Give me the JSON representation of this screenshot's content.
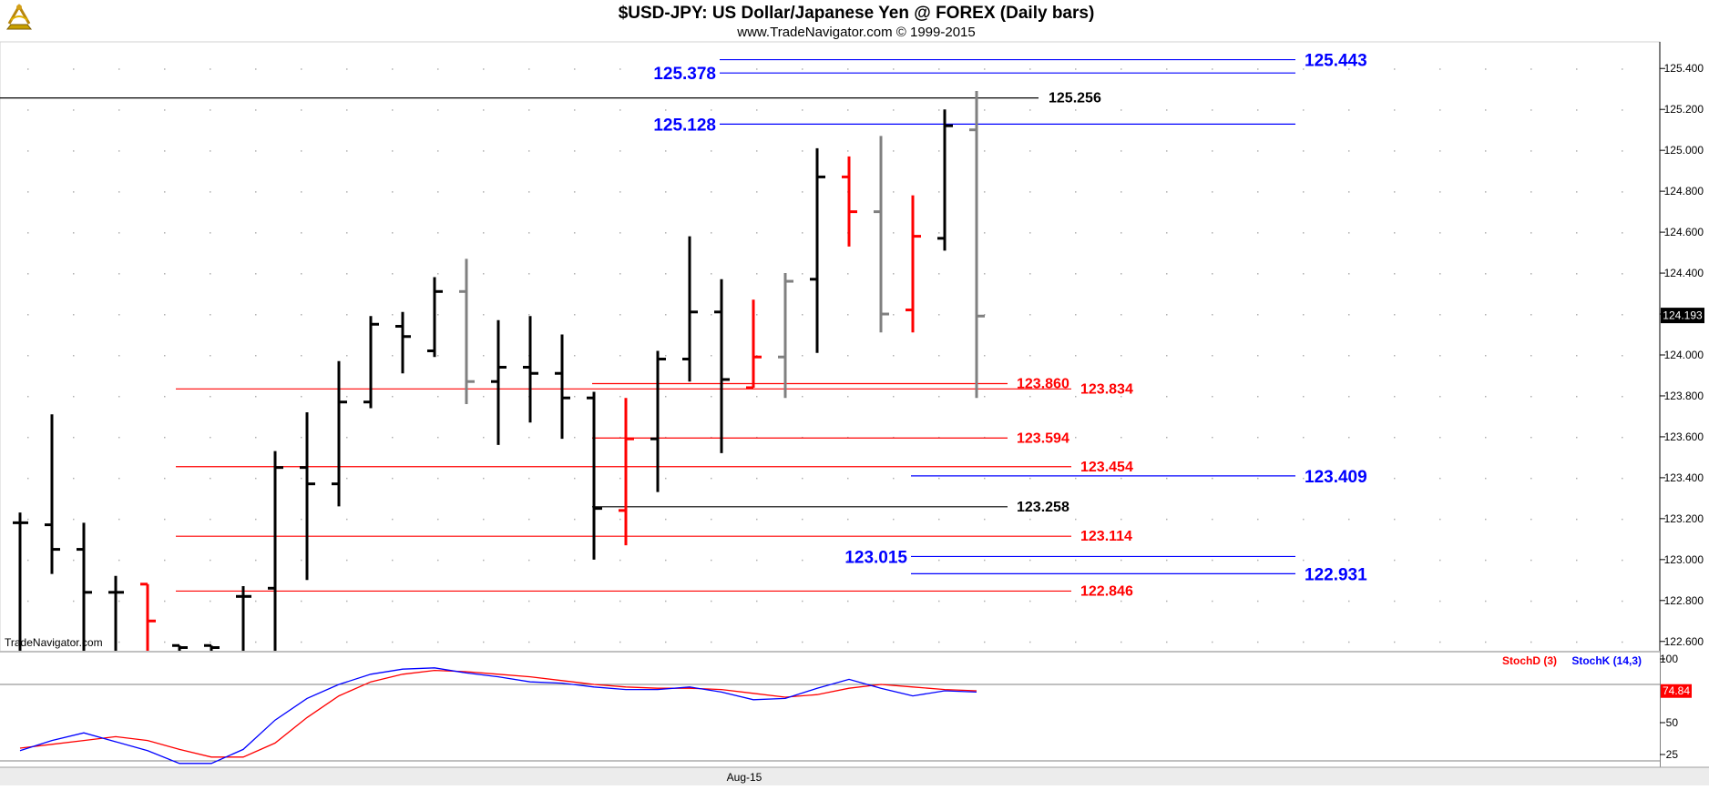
{
  "header": {
    "title": "$USD-JPY:  US Dollar/Japanese Yen @ FOREX  (Daily bars)",
    "subtitle": "www.TradeNavigator.com © 1999-2015",
    "logo_icon": "sextant-logo-icon"
  },
  "watermark": "TradeNavigator.com",
  "colors": {
    "up_bar": "#000000",
    "down_bar": "#ff0000",
    "neutral_bar": "#808080",
    "level_red": "#ff0000",
    "level_blue": "#0000ff",
    "level_black": "#000000",
    "stoch_d": "#ff0000",
    "stoch_k": "#0000ff",
    "grid_dot": "#b0b0b0"
  },
  "chart_data": {
    "type": "ohlc",
    "ylim": [
      122.55,
      125.53
    ],
    "y_ticks": [
      "122.600",
      "122.800",
      "123.000",
      "123.200",
      "123.400",
      "123.600",
      "123.800",
      "124.000",
      "124.200",
      "124.400",
      "124.600",
      "124.800",
      "125.000",
      "125.200",
      "125.400"
    ],
    "x_label": "Aug-15",
    "x_label_index": 23,
    "last_price": "124.193",
    "bars": [
      {
        "o": 123.18,
        "h": 123.23,
        "l": 122.55,
        "c": 123.18,
        "color": "up"
      },
      {
        "o": 123.17,
        "h": 123.71,
        "l": 122.93,
        "c": 123.05,
        "color": "up"
      },
      {
        "o": 123.05,
        "h": 123.18,
        "l": 122.55,
        "c": 122.84,
        "color": "up"
      },
      {
        "o": 122.84,
        "h": 122.92,
        "l": 122.55,
        "c": 122.84,
        "color": "up"
      },
      {
        "o": 122.88,
        "h": 122.88,
        "l": 122.55,
        "c": 122.7,
        "color": "down"
      },
      {
        "o": 122.58,
        "h": 122.58,
        "l": 122.55,
        "c": 122.57,
        "color": "up"
      },
      {
        "o": 122.58,
        "h": 122.58,
        "l": 122.55,
        "c": 122.57,
        "color": "up"
      },
      {
        "o": 122.82,
        "h": 122.87,
        "l": 122.55,
        "c": 122.82,
        "color": "up"
      },
      {
        "o": 122.86,
        "h": 123.53,
        "l": 122.55,
        "c": 123.45,
        "color": "up"
      },
      {
        "o": 123.45,
        "h": 123.72,
        "l": 122.9,
        "c": 123.37,
        "color": "up"
      },
      {
        "o": 123.37,
        "h": 123.97,
        "l": 123.26,
        "c": 123.77,
        "color": "up"
      },
      {
        "o": 123.77,
        "h": 124.19,
        "l": 123.74,
        "c": 124.15,
        "color": "up"
      },
      {
        "o": 124.14,
        "h": 124.21,
        "l": 123.91,
        "c": 124.09,
        "color": "up"
      },
      {
        "o": 124.02,
        "h": 124.38,
        "l": 123.99,
        "c": 124.31,
        "color": "up"
      },
      {
        "o": 124.31,
        "h": 124.47,
        "l": 123.76,
        "c": 123.87,
        "color": "neutral"
      },
      {
        "o": 123.87,
        "h": 124.17,
        "l": 123.56,
        "c": 123.94,
        "color": "up"
      },
      {
        "o": 123.94,
        "h": 124.19,
        "l": 123.67,
        "c": 123.91,
        "color": "up"
      },
      {
        "o": 123.91,
        "h": 124.1,
        "l": 123.59,
        "c": 123.79,
        "color": "up"
      },
      {
        "o": 123.79,
        "h": 123.82,
        "l": 123.0,
        "c": 123.25,
        "color": "up"
      },
      {
        "o": 123.24,
        "h": 123.79,
        "l": 123.07,
        "c": 123.59,
        "color": "down"
      },
      {
        "o": 123.59,
        "h": 124.02,
        "l": 123.33,
        "c": 123.98,
        "color": "up"
      },
      {
        "o": 123.98,
        "h": 124.58,
        "l": 123.87,
        "c": 124.21,
        "color": "up"
      },
      {
        "o": 124.21,
        "h": 124.37,
        "l": 123.52,
        "c": 123.88,
        "color": "up"
      },
      {
        "o": 123.84,
        "h": 124.27,
        "l": 123.84,
        "c": 123.99,
        "color": "down"
      },
      {
        "o": 123.99,
        "h": 124.4,
        "l": 123.79,
        "c": 124.36,
        "color": "neutral"
      },
      {
        "o": 124.37,
        "h": 125.01,
        "l": 124.01,
        "c": 124.87,
        "color": "up"
      },
      {
        "o": 124.87,
        "h": 124.97,
        "l": 124.53,
        "c": 124.7,
        "color": "down"
      },
      {
        "o": 124.7,
        "h": 125.07,
        "l": 124.11,
        "c": 124.2,
        "color": "neutral"
      },
      {
        "o": 124.22,
        "h": 124.78,
        "l": 124.11,
        "c": 124.58,
        "color": "down"
      },
      {
        "o": 124.57,
        "h": 125.2,
        "l": 124.51,
        "c": 125.12,
        "color": "up"
      },
      {
        "o": 125.1,
        "h": 125.29,
        "l": 123.79,
        "c": 124.19,
        "color": "neutral"
      }
    ],
    "levels": [
      {
        "value": 125.443,
        "label": "125.443",
        "color": "blue",
        "x0": 790,
        "x1": 1422,
        "label_side": "right",
        "label_x": 1432
      },
      {
        "value": 125.378,
        "label": "125.378",
        "color": "blue",
        "x0": 790,
        "x1": 1422,
        "label_side": "left",
        "label_x": 786
      },
      {
        "value": 125.256,
        "label": "125.256",
        "color": "black",
        "x0": 0,
        "x1": 1140,
        "label_side": "right",
        "label_x": 1151
      },
      {
        "value": 125.128,
        "label": "125.128",
        "color": "blue",
        "x0": 790,
        "x1": 1422,
        "label_side": "left",
        "label_x": 786
      },
      {
        "value": 123.86,
        "label": "123.860",
        "color": "red",
        "x0": 650,
        "x1": 1106,
        "label_side": "right",
        "label_x": 1116
      },
      {
        "value": 123.834,
        "label": "123.834",
        "color": "red",
        "x0": 193,
        "x1": 1176,
        "label_side": "right",
        "label_x": 1186
      },
      {
        "value": 123.594,
        "label": "123.594",
        "color": "red",
        "x0": 650,
        "x1": 1106,
        "label_side": "right",
        "label_x": 1116
      },
      {
        "value": 123.454,
        "label": "123.454",
        "color": "red",
        "x0": 193,
        "x1": 1176,
        "label_side": "right",
        "label_x": 1186
      },
      {
        "value": 123.409,
        "label": "123.409",
        "color": "blue",
        "x0": 1000,
        "x1": 1422,
        "label_side": "right",
        "label_x": 1432
      },
      {
        "value": 123.258,
        "label": "123.258",
        "color": "black",
        "x0": 650,
        "x1": 1106,
        "label_side": "right",
        "label_x": 1116
      },
      {
        "value": 123.114,
        "label": "123.114",
        "color": "red",
        "x0": 193,
        "x1": 1176,
        "label_side": "right",
        "label_x": 1186
      },
      {
        "value": 123.015,
        "label": "123.015",
        "color": "blue",
        "x0": 1000,
        "x1": 1422,
        "label_side": "left",
        "label_x": 996
      },
      {
        "value": 122.931,
        "label": "122.931",
        "color": "blue",
        "x0": 1000,
        "x1": 1422,
        "label_side": "right",
        "label_x": 1432
      },
      {
        "value": 122.846,
        "label": "122.846",
        "color": "red",
        "x0": 193,
        "x1": 1176,
        "label_side": "right",
        "label_x": 1186
      }
    ],
    "stochastic": {
      "d_label": "StochD (3)",
      "k_label": "StochK (14,3)",
      "last_value": "74.84",
      "ylim": [
        15,
        105
      ],
      "y_ticks": [
        "100",
        "50",
        "25"
      ],
      "ref_lines": [
        80,
        20
      ],
      "k": [
        28,
        36,
        42,
        35,
        28,
        18,
        18,
        29,
        52,
        69,
        80,
        88,
        92,
        93,
        89,
        86,
        82,
        81,
        78,
        76,
        76,
        78,
        74,
        68,
        69,
        77,
        84,
        77,
        71,
        75,
        74
      ],
      "d": [
        30,
        33,
        36,
        39,
        36,
        29,
        23,
        23,
        34,
        54,
        71,
        82,
        88,
        91,
        90,
        88,
        86,
        83,
        80,
        78,
        77,
        77,
        76,
        73,
        70,
        72,
        77,
        80,
        78,
        76,
        75
      ]
    }
  }
}
